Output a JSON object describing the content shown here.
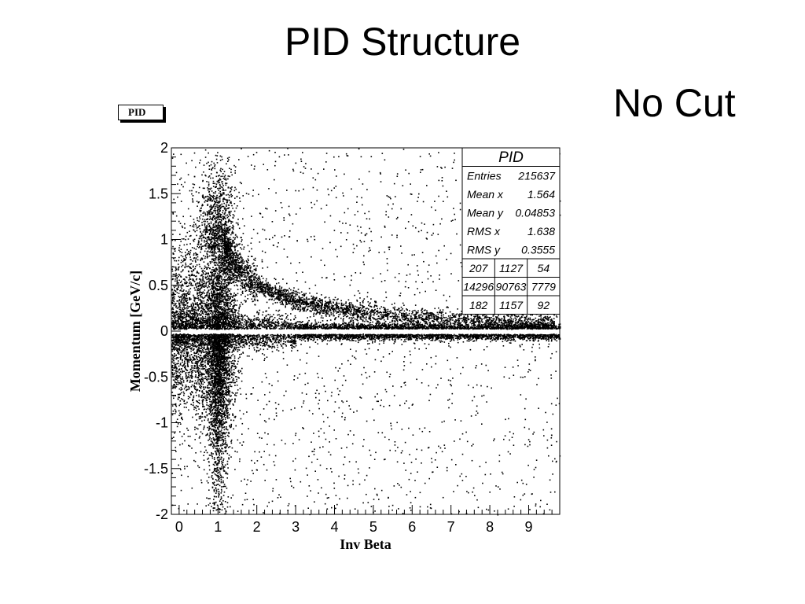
{
  "slide": {
    "title": "PID Structure",
    "subtitle": "No Cut",
    "canvas_tab": "PID"
  },
  "chart_data": {
    "type": "scatter",
    "name": "PID",
    "xlabel": "Inv Beta",
    "ylabel": "Momentum [GeV/c]",
    "xlim": [
      -0.2,
      9.8
    ],
    "ylim": [
      -2,
      2
    ],
    "xticks": [
      0,
      1,
      2,
      3,
      4,
      5,
      6,
      7,
      8,
      9
    ],
    "yticks": [
      -2,
      -1.5,
      -1,
      -0.5,
      0,
      0.5,
      1,
      1.5,
      2
    ],
    "grid": false,
    "legend": "none",
    "stats_box": {
      "title": "PID",
      "entries": [
        {
          "label": "Entries",
          "value": "215637"
        },
        {
          "label": "Mean x",
          "value": "1.564"
        },
        {
          "label": "Mean y",
          "value": "0.04853"
        },
        {
          "label": "RMS x",
          "value": "1.638"
        },
        {
          "label": "RMS y",
          "value": "0.3555"
        }
      ],
      "grid_rows": [
        [
          "207",
          "1127",
          "54"
        ],
        [
          "14296",
          "90763",
          "7779"
        ],
        [
          "182",
          "1157",
          "92"
        ]
      ]
    },
    "features": {
      "description_points": "dense scatter of particle identification",
      "pion_band_peak": {
        "x": 1.0,
        "y_top": 1.05
      },
      "proton_band": [
        [
          1.2,
          1.0
        ],
        [
          1.5,
          0.8
        ],
        [
          2.0,
          0.58
        ],
        [
          2.5,
          0.45
        ],
        [
          3.0,
          0.36
        ],
        [
          4.0,
          0.27
        ],
        [
          5.0,
          0.22
        ],
        [
          6.0,
          0.18
        ],
        [
          7.0,
          0.15
        ],
        [
          8.0,
          0.13
        ],
        [
          9.0,
          0.12
        ]
      ],
      "gap_around_zero": [
        -0.02,
        0.02
      ],
      "marker_color": "#000000"
    }
  }
}
